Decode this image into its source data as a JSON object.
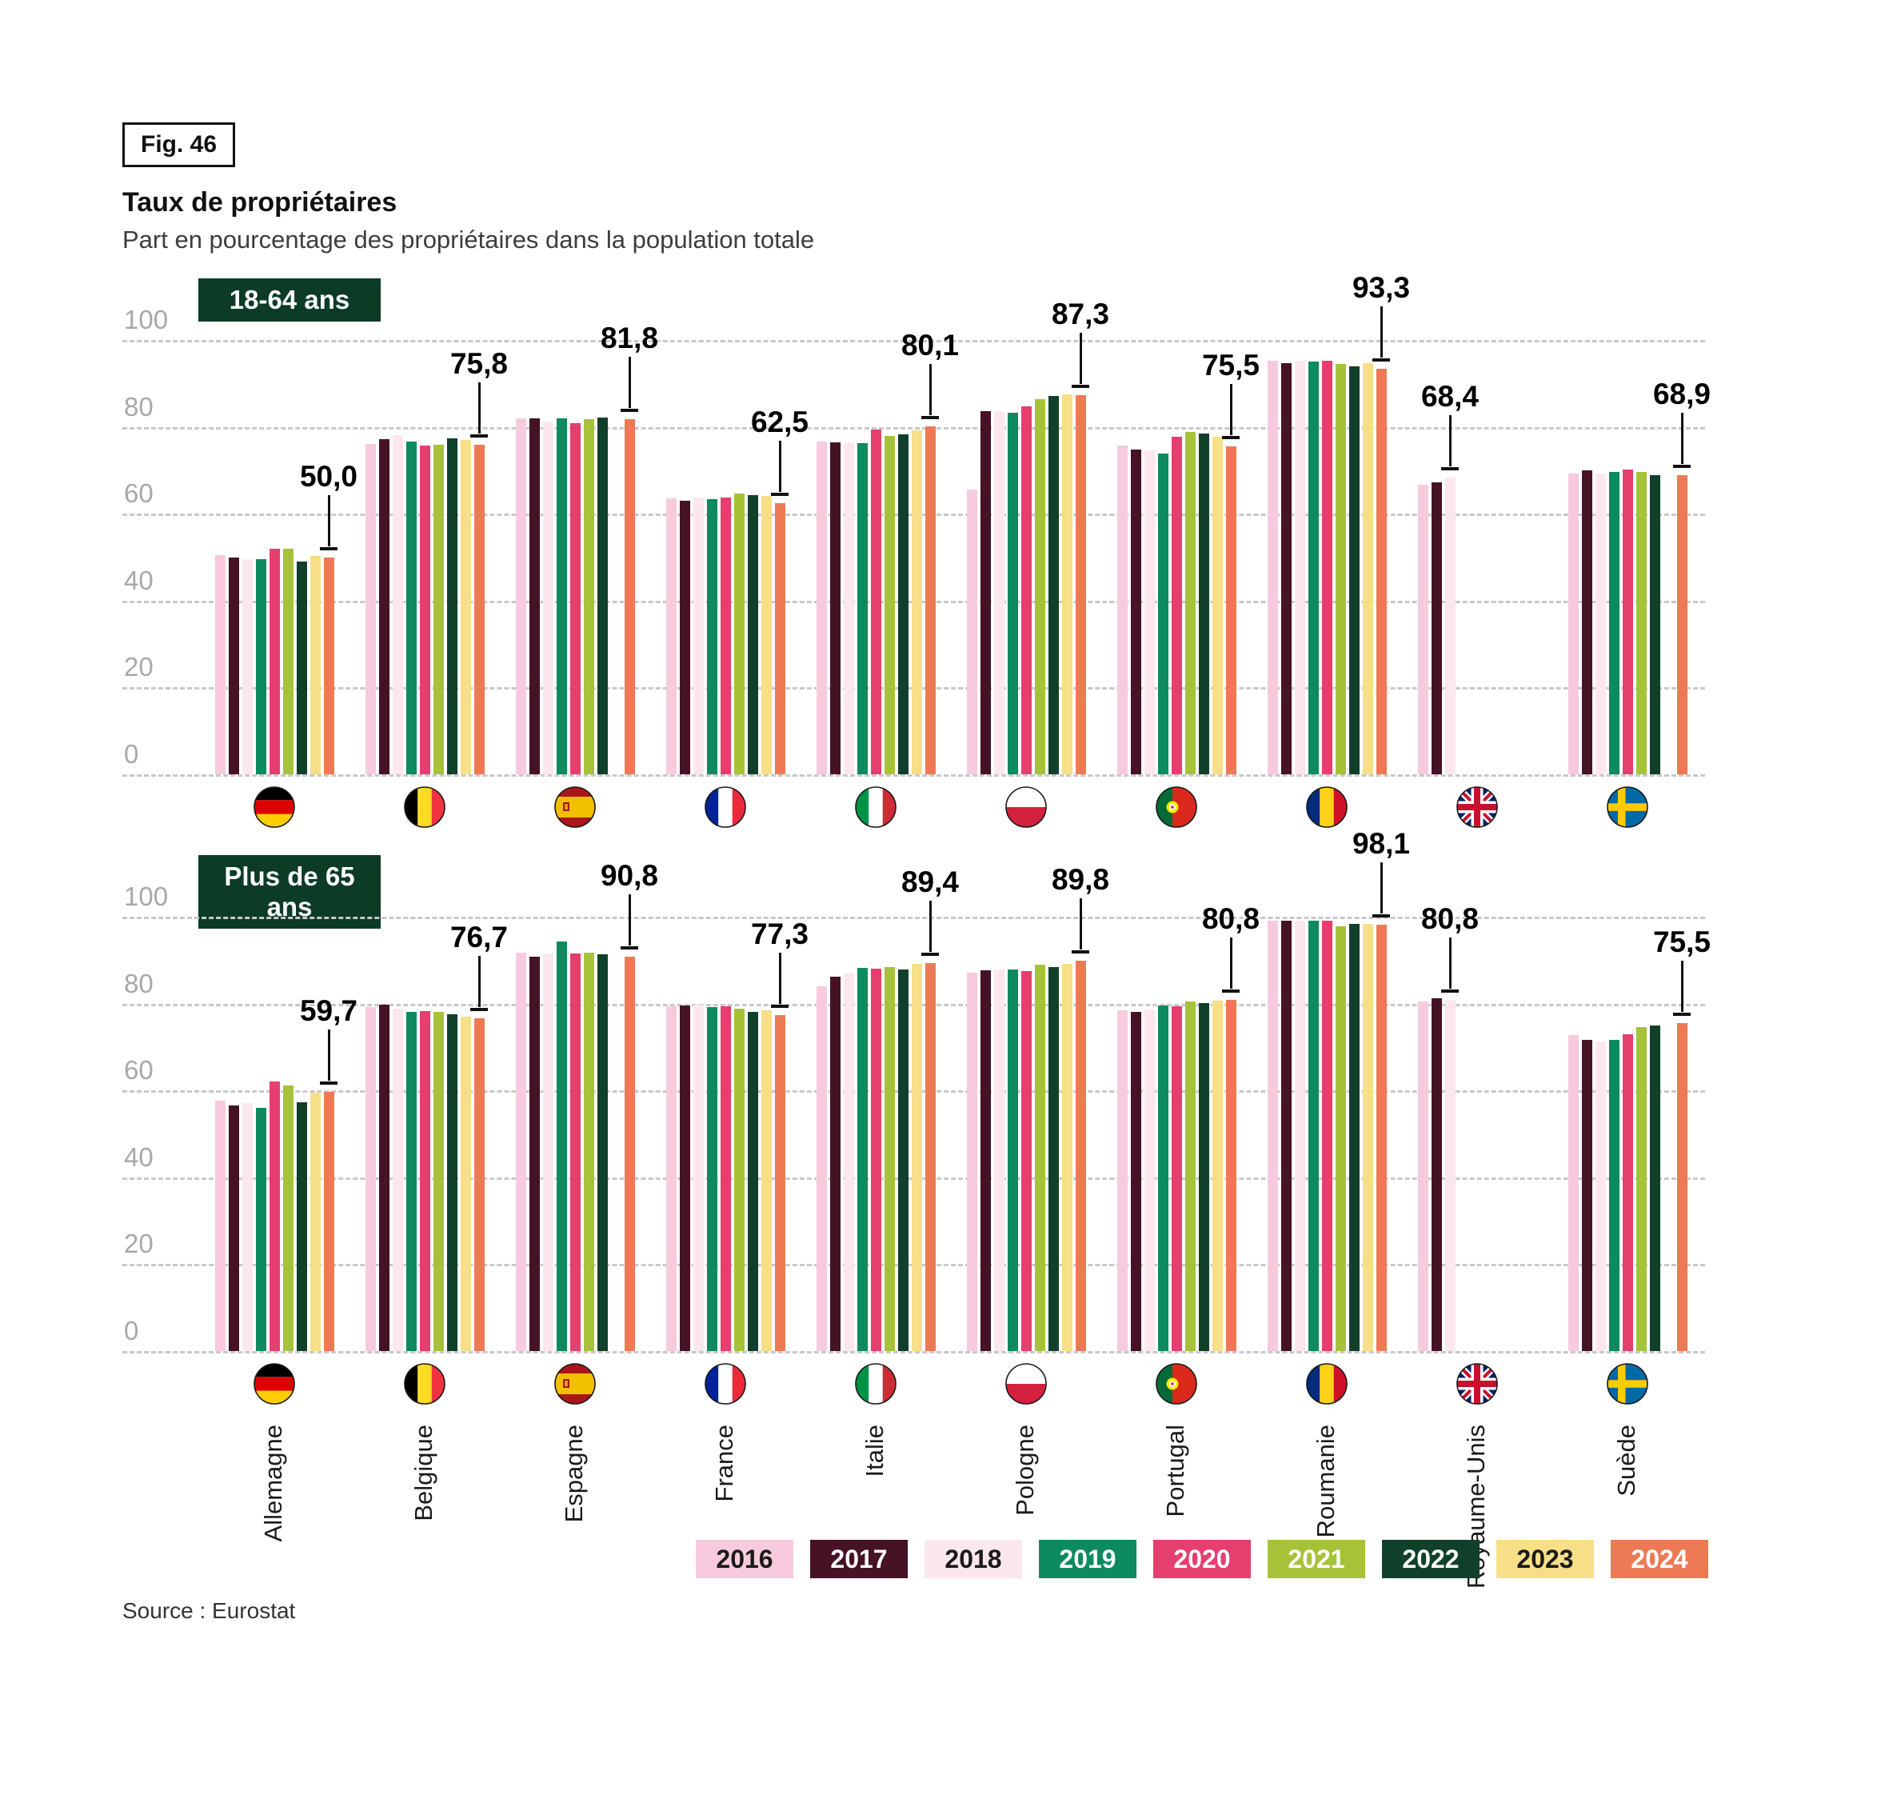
{
  "figure": {
    "fig_label": "Fig. 46",
    "title": "Taux de propriétaires",
    "subtitle": "Part en pourcentage des propriétaires dans la population totale",
    "source": "Source : Eurostat"
  },
  "legend": {
    "years": [
      {
        "label": "2016",
        "color": "#f7cbdd",
        "text_color": "#1a1a1a"
      },
      {
        "label": "2017",
        "color": "#451226",
        "text_color": "#ffffff"
      },
      {
        "label": "2018",
        "color": "#fbe7ec",
        "text_color": "#1a1a1a"
      },
      {
        "label": "2019",
        "color": "#0d8a5e",
        "text_color": "#ffffff"
      },
      {
        "label": "2020",
        "color": "#e63e6e",
        "text_color": "#ffffff"
      },
      {
        "label": "2021",
        "color": "#a6c238",
        "text_color": "#ffffff"
      },
      {
        "label": "2022",
        "color": "#11402a",
        "text_color": "#ffffff"
      },
      {
        "label": "2023",
        "color": "#f6df87",
        "text_color": "#1a1a1a"
      },
      {
        "label": "2024",
        "color": "#ed7a55",
        "text_color": "#ffffff"
      }
    ]
  },
  "chart_data": {
    "type": "bar",
    "grid": "dashed-horizontal",
    "ylim": [
      0,
      100
    ],
    "yticks": [
      0,
      20,
      40,
      60,
      80,
      100
    ],
    "series_years": [
      "2016",
      "2017",
      "2018",
      "2019",
      "2020",
      "2021",
      "2022",
      "2023",
      "2024"
    ],
    "panels": [
      {
        "id": "18-64",
        "badge": "18-64 ans",
        "countries": [
          {
            "name": "Allemagne",
            "flag": "de",
            "values": [
              50.4,
              49.9,
              49.6,
              49.6,
              52.0,
              51.9,
              48.9,
              50.3,
              50.0
            ],
            "annotation": {
              "label": "50,0",
              "value": 50.0,
              "year_index": 8
            }
          },
          {
            "name": "Belgique",
            "flag": "be",
            "values": [
              76.0,
              77.2,
              78.1,
              76.6,
              75.6,
              75.8,
              77.3,
              77.0,
              75.8
            ],
            "annotation": {
              "label": "75,8",
              "value": 75.8,
              "year_index": 8
            }
          },
          {
            "name": "Espagne",
            "flag": "es",
            "values": [
              82.0,
              82.0,
              81.2,
              82.0,
              80.8,
              81.7,
              82.1,
              null,
              81.8
            ],
            "annotation": {
              "label": "81,8",
              "value": 81.8,
              "year_index": 8
            }
          },
          {
            "name": "France",
            "flag": "fr",
            "values": [
              63.6,
              63.0,
              63.7,
              63.3,
              63.8,
              64.7,
              64.2,
              64.1,
              62.5
            ],
            "annotation": {
              "label": "62,5",
              "value": 62.5,
              "year_index": 8
            }
          },
          {
            "name": "Italie",
            "flag": "it",
            "values": [
              76.6,
              76.4,
              76.4,
              76.2,
              79.3,
              77.9,
              78.3,
              79.2,
              80.1
            ],
            "annotation": {
              "label": "80,1",
              "value": 80.1,
              "year_index": 8
            }
          },
          {
            "name": "Pologne",
            "flag": "pl",
            "values": [
              65.5,
              83.7,
              83.6,
              83.3,
              84.8,
              86.4,
              87.2,
              87.5,
              87.3
            ],
            "annotation": {
              "label": "87,3",
              "value": 87.3,
              "year_index": 8
            }
          },
          {
            "name": "Portugal",
            "flag": "pt",
            "values": [
              75.7,
              74.8,
              74.6,
              73.9,
              77.8,
              78.9,
              78.5,
              77.8,
              75.5
            ],
            "annotation": {
              "label": "75,5",
              "value": 75.5,
              "year_index": 8
            }
          },
          {
            "name": "Roumanie",
            "flag": "ro",
            "values": [
              95.2,
              94.6,
              95.3,
              95.0,
              95.3,
              94.4,
              94.0,
              94.6,
              93.3
            ],
            "annotation": {
              "label": "93,3",
              "value": 93.3,
              "year_index": 8
            }
          },
          {
            "name": "Royaume-Unis",
            "flag": "uk",
            "values": [
              66.7,
              67.2,
              68.4,
              null,
              null,
              null,
              null,
              null,
              null
            ],
            "annotation": {
              "label": "68,4",
              "value": 68.4,
              "year_index": 2
            }
          },
          {
            "name": "Suède",
            "flag": "se",
            "values": [
              69.3,
              69.9,
              69.3,
              69.7,
              70.1,
              69.6,
              68.8,
              null,
              68.9
            ],
            "annotation": {
              "label": "68,9",
              "value": 68.9,
              "year_index": 8
            }
          }
        ]
      },
      {
        "id": "65plus",
        "badge": "Plus de 65 ans",
        "countries": [
          {
            "name": "Allemagne",
            "flag": "de",
            "values": [
              57.6,
              56.6,
              57.0,
              55.9,
              62.0,
              61.2,
              57.2,
              59.5,
              59.7
            ],
            "annotation": {
              "label": "59,7",
              "value": 59.7,
              "year_index": 8
            }
          },
          {
            "name": "Belgique",
            "flag": "be",
            "values": [
              79.1,
              79.8,
              78.9,
              78.1,
              78.3,
              78.0,
              77.6,
              77.0,
              76.7
            ],
            "annotation": {
              "label": "76,7",
              "value": 76.7,
              "year_index": 8
            }
          },
          {
            "name": "Espagne",
            "flag": "es",
            "values": [
              91.7,
              90.7,
              91.6,
              94.3,
              91.6,
              91.7,
              91.4,
              null,
              90.8
            ],
            "annotation": {
              "label": "90,8",
              "value": 90.8,
              "year_index": 8
            }
          },
          {
            "name": "France",
            "flag": "fr",
            "values": [
              79.4,
              79.6,
              79.7,
              79.1,
              79.3,
              78.8,
              78.1,
              78.5,
              77.3
            ],
            "annotation": {
              "label": "77,3",
              "value": 77.3,
              "year_index": 8
            }
          },
          {
            "name": "Italie",
            "flag": "it",
            "values": [
              84.0,
              86.1,
              87.0,
              88.2,
              88.0,
              88.4,
              87.9,
              89.1,
              89.4
            ],
            "annotation": {
              "label": "89,4",
              "value": 89.4,
              "year_index": 8
            }
          },
          {
            "name": "Pologne",
            "flag": "pl",
            "values": [
              87.1,
              87.6,
              87.8,
              87.8,
              87.4,
              88.9,
              88.4,
              89.1,
              89.8
            ],
            "annotation": {
              "label": "89,8",
              "value": 89.8,
              "year_index": 8
            }
          },
          {
            "name": "Portugal",
            "flag": "pt",
            "values": [
              78.4,
              78.1,
              78.7,
              79.6,
              79.4,
              80.4,
              80.1,
              80.7,
              80.8
            ],
            "annotation": {
              "label": "80,8",
              "value": 80.8,
              "year_index": 8
            }
          },
          {
            "name": "Roumanie",
            "flag": "ro",
            "values": [
              99.0,
              99.1,
              99.0,
              99.1,
              99.1,
              97.8,
              98.4,
              98.4,
              98.1
            ],
            "annotation": {
              "label": "98,1",
              "value": 98.1,
              "year_index": 8
            }
          },
          {
            "name": "Royaume-Unis",
            "flag": "uk",
            "values": [
              80.4,
              81.2,
              80.8,
              null,
              null,
              null,
              null,
              null,
              null
            ],
            "annotation": {
              "label": "80,8",
              "value": 80.8,
              "year_index": 2
            }
          },
          {
            "name": "Suède",
            "flag": "se",
            "values": [
              72.7,
              71.6,
              71.3,
              71.6,
              72.9,
              74.5,
              74.9,
              null,
              75.5
            ],
            "annotation": {
              "label": "75,5",
              "value": 75.5,
              "year_index": 8
            }
          }
        ]
      }
    ],
    "badge_color": "#0c3b26"
  }
}
